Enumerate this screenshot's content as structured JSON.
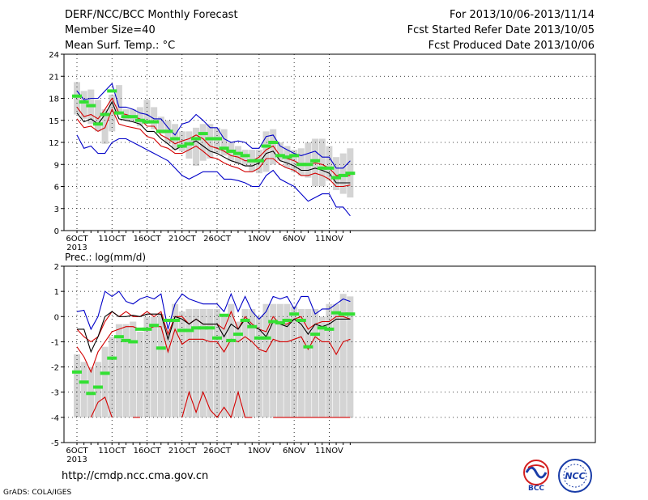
{
  "header": {
    "title": "DERF/NCC/BCC Monthly Forecast",
    "member_size": "Member Size=40",
    "variable": "Mean Surf. Temp.: °C",
    "period": "For 2013/10/06-2013/11/14",
    "start_date": "Fcst Started Refer Date 2013/10/05",
    "produced_date": "Fcst Produced Date 2013/10/06"
  },
  "colors": {
    "bar": "#d4d4d4",
    "mean": "#33e033",
    "median": "#000000",
    "inner": "#d40000",
    "outer": "#0000c8",
    "grid": "#000000"
  },
  "chart_data": [
    {
      "type": "line",
      "title": "Mean Surf. Temp.: °C",
      "xlabel": "",
      "ylabel": "",
      "ylim": [
        0,
        24
      ],
      "yticks": [
        "0",
        "3",
        "6",
        "9",
        "12",
        "15",
        "18",
        "21",
        "24"
      ],
      "xticks": [
        {
          "label": "6OCT",
          "i": 0
        },
        {
          "label": "11OCT",
          "i": 5
        },
        {
          "label": "16OCT",
          "i": 10
        },
        {
          "label": "21OCT",
          "i": 15
        },
        {
          "label": "26OCT",
          "i": 20
        },
        {
          "label": "1NOV",
          "i": 26
        },
        {
          "label": "6NOV",
          "i": 31
        },
        {
          "label": "11NOV",
          "i": 36
        }
      ],
      "year_label": "2013",
      "grid": "dotted",
      "days": 40,
      "series": [
        {
          "role": "bar_low",
          "values": [
            15.8,
            15.2,
            14.5,
            13.5,
            11.8,
            13.5,
            16.0,
            15.0,
            14.8,
            14.2,
            14.5,
            13.8,
            13.2,
            11.8,
            11.0,
            10.8,
            9.8,
            8.8,
            9.5,
            9.8,
            10.5,
            10.2,
            9.5,
            9.0,
            8.8,
            8.0,
            7.8,
            8.0,
            9.0,
            9.5,
            8.5,
            8.0,
            7.5,
            7.2,
            6.0,
            6.0,
            6.8,
            5.5,
            5.0,
            4.5
          ]
        },
        {
          "role": "bar_high",
          "values": [
            20.2,
            19.0,
            19.2,
            17.8,
            16.5,
            18.5,
            19.8,
            16.5,
            16.5,
            16.8,
            17.8,
            16.8,
            15.5,
            15.0,
            14.5,
            13.5,
            13.5,
            14.0,
            14.5,
            14.5,
            14.0,
            13.8,
            12.0,
            11.5,
            11.0,
            11.0,
            11.0,
            13.5,
            13.8,
            12.0,
            11.5,
            11.0,
            11.2,
            12.0,
            12.5,
            12.5,
            11.5,
            10.0,
            10.5,
            11.2
          ]
        },
        {
          "role": "mean",
          "values": [
            18.3,
            17.5,
            17.0,
            14.5,
            15.8,
            19.0,
            16.0,
            15.5,
            15.5,
            15.0,
            14.8,
            14.8,
            13.5,
            13.5,
            12.5,
            11.5,
            11.8,
            12.5,
            13.2,
            12.5,
            12.5,
            11.2,
            10.8,
            10.5,
            10.2,
            9.5,
            9.5,
            11.5,
            12.0,
            10.2,
            10.0,
            10.2,
            9.0,
            9.0,
            9.5,
            8.5,
            8.5,
            7.2,
            7.5,
            7.8
          ]
        },
        {
          "name": "max",
          "role": "outer_high",
          "values": [
            19.0,
            17.8,
            18.0,
            18.0,
            19.0,
            20.0,
            16.8,
            16.8,
            16.5,
            16.0,
            15.8,
            15.2,
            15.2,
            14.0,
            13.0,
            14.5,
            14.8,
            15.8,
            15.0,
            14.0,
            14.0,
            12.5,
            12.0,
            12.2,
            12.0,
            11.2,
            11.2,
            12.8,
            13.0,
            11.5,
            11.0,
            10.5,
            10.2,
            10.5,
            10.8,
            10.0,
            10.0,
            8.5,
            8.5,
            9.5
          ]
        },
        {
          "name": "upper",
          "role": "inner_high",
          "values": [
            16.8,
            15.5,
            15.8,
            15.2,
            16.5,
            18.0,
            16.0,
            15.8,
            15.5,
            15.2,
            14.2,
            14.2,
            13.0,
            12.5,
            11.8,
            12.2,
            12.5,
            13.0,
            12.5,
            11.5,
            11.2,
            10.8,
            10.2,
            10.0,
            9.5,
            9.5,
            10.0,
            11.0,
            11.5,
            10.2,
            9.8,
            9.5,
            9.0,
            9.0,
            9.2,
            9.0,
            8.5,
            7.5,
            7.5,
            7.5
          ]
        },
        {
          "name": "median",
          "role": "median",
          "values": [
            16.0,
            14.8,
            15.2,
            14.5,
            15.8,
            17.5,
            15.2,
            15.0,
            14.8,
            14.5,
            13.5,
            13.5,
            12.5,
            11.8,
            11.0,
            11.5,
            11.8,
            12.2,
            11.5,
            10.8,
            10.5,
            10.0,
            9.5,
            9.2,
            8.8,
            8.8,
            9.2,
            10.5,
            10.8,
            9.5,
            9.2,
            8.8,
            8.2,
            8.2,
            8.5,
            8.2,
            7.8,
            6.5,
            6.5,
            6.5
          ]
        },
        {
          "name": "lower",
          "role": "inner_low",
          "values": [
            15.2,
            14.0,
            14.2,
            13.5,
            14.0,
            16.5,
            14.5,
            14.2,
            14.0,
            13.8,
            12.8,
            12.5,
            11.5,
            11.2,
            10.5,
            10.5,
            11.0,
            11.5,
            10.8,
            10.0,
            9.8,
            9.2,
            8.8,
            8.5,
            8.0,
            8.0,
            8.5,
            9.8,
            9.8,
            9.0,
            8.5,
            8.2,
            7.5,
            7.5,
            7.8,
            7.5,
            7.0,
            6.0,
            6.0,
            6.2
          ]
        },
        {
          "name": "min",
          "role": "outer_low",
          "values": [
            13.0,
            11.2,
            11.5,
            10.5,
            10.5,
            12.0,
            12.5,
            12.5,
            12.0,
            11.5,
            11.0,
            10.5,
            10.0,
            9.5,
            8.5,
            7.5,
            7.0,
            7.5,
            8.0,
            8.0,
            8.0,
            7.0,
            7.0,
            6.8,
            6.5,
            6.0,
            6.0,
            7.5,
            8.2,
            7.0,
            6.5,
            6.0,
            5.0,
            4.0,
            4.5,
            5.0,
            5.0,
            3.2,
            3.2,
            2.0
          ]
        }
      ]
    },
    {
      "type": "line",
      "title": "Prec.: log(mm/d)",
      "xlabel": "",
      "ylabel": "",
      "ylim": [
        -5,
        2
      ],
      "yticks": [
        "-5",
        "-4",
        "-3",
        "-2",
        "-1",
        "0",
        "1",
        "2"
      ],
      "xticks": [
        {
          "label": "6OCT",
          "i": 0
        },
        {
          "label": "11OCT",
          "i": 5
        },
        {
          "label": "16OCT",
          "i": 10
        },
        {
          "label": "21OCT",
          "i": 15
        },
        {
          "label": "26OCT",
          "i": 20
        },
        {
          "label": "1NOV",
          "i": 26
        },
        {
          "label": "6NOV",
          "i": 31
        },
        {
          "label": "11NOV",
          "i": 36
        }
      ],
      "year_label": "2013",
      "grid": "dotted",
      "days": 40,
      "series": [
        {
          "role": "bar_low",
          "values": [
            -4,
            -4,
            -4,
            -4,
            -4,
            -4,
            -4,
            -4,
            -4,
            -4,
            -4,
            -4,
            -4,
            -4,
            -4,
            -4,
            -4,
            -4,
            -4,
            -4,
            -4,
            -4,
            -4,
            -4,
            -4,
            -4,
            -4,
            -4,
            -4,
            -4,
            -4,
            -4,
            -4,
            -4,
            -4,
            -4,
            -4,
            -4,
            -4,
            -4
          ]
        },
        {
          "role": "bar_high",
          "values": [
            -1.5,
            -1.8,
            -2.0,
            -1.8,
            -1.2,
            -0.8,
            -0.3,
            -0.3,
            -0.2,
            -0.6,
            0.0,
            0.0,
            0.1,
            -0.5,
            0.5,
            0.2,
            0.3,
            0.3,
            0.3,
            0.3,
            0.3,
            0.0,
            0.5,
            -0.2,
            0.3,
            0.3,
            0.0,
            0.5,
            0.5,
            0.5,
            0.5,
            0.4,
            0.3,
            0.3,
            0.3,
            0.0,
            0.5,
            0.5,
            0.9,
            0.8
          ]
        },
        {
          "role": "mean",
          "values": [
            -2.2,
            -2.6,
            -3.05,
            -2.8,
            -2.25,
            -1.65,
            -0.8,
            -0.95,
            -1.0,
            -0.5,
            -0.5,
            -0.35,
            -1.25,
            -0.15,
            -0.15,
            -0.55,
            -0.55,
            -0.45,
            -0.45,
            -0.45,
            -0.85,
            0.05,
            -0.95,
            -0.7,
            -0.15,
            -0.4,
            -0.85,
            -0.85,
            -0.2,
            -0.25,
            -0.15,
            0.1,
            -0.15,
            -1.2,
            -0.7,
            -0.45,
            -0.5,
            0.15,
            0.1,
            0.1
          ]
        },
        {
          "name": "max",
          "role": "outer_high",
          "values": [
            0.2,
            0.25,
            -0.5,
            0.0,
            1.0,
            0.8,
            1.0,
            0.6,
            0.5,
            0.7,
            0.8,
            0.7,
            0.9,
            -0.5,
            0.5,
            0.9,
            0.7,
            0.6,
            0.5,
            0.5,
            0.5,
            0.2,
            0.9,
            0.2,
            0.8,
            0.2,
            -0.1,
            0.2,
            0.8,
            0.7,
            0.8,
            0.3,
            0.8,
            0.8,
            0.1,
            0.3,
            0.3,
            0.5,
            0.7,
            0.6
          ]
        },
        {
          "name": "upper",
          "role": "inner_high",
          "values": [
            -0.5,
            -0.8,
            -1.0,
            -0.8,
            -0.2,
            0.2,
            0.0,
            0.2,
            0.0,
            0.0,
            0.2,
            0.0,
            0.2,
            -0.7,
            0.0,
            0.0,
            -0.3,
            -0.1,
            -0.3,
            -0.3,
            -0.3,
            -0.5,
            0.2,
            -0.5,
            0.0,
            -0.3,
            -0.5,
            -0.6,
            0.0,
            -0.3,
            -0.3,
            -0.1,
            0.0,
            -0.5,
            -0.3,
            -0.2,
            -0.2,
            0.0,
            0.0,
            -0.1
          ]
        },
        {
          "name": "median",
          "role": "median",
          "values": [
            -0.5,
            -0.5,
            -1.4,
            -0.8,
            0.0,
            0.2,
            0.0,
            0.0,
            0.05,
            0.0,
            0.1,
            0.1,
            0.1,
            -0.9,
            0.0,
            -0.1,
            -0.3,
            -0.1,
            -0.3,
            -0.3,
            -0.3,
            -0.8,
            -0.3,
            -0.5,
            -0.1,
            -0.4,
            -0.5,
            -0.8,
            -0.2,
            -0.3,
            -0.4,
            -0.1,
            -0.3,
            -0.7,
            -0.3,
            -0.4,
            -0.3,
            -0.1,
            -0.1,
            -0.1
          ]
        },
        {
          "name": "lower",
          "role": "inner_low",
          "values": [
            -1.2,
            -1.6,
            -2.2,
            -1.4,
            -1.0,
            -0.6,
            -0.5,
            -0.4,
            -0.4,
            -0.5,
            -0.5,
            -0.4,
            -0.4,
            -1.4,
            -0.5,
            -1.1,
            -0.9,
            -0.9,
            -0.9,
            -1.0,
            -1.0,
            -1.4,
            -0.9,
            -1.0,
            -0.8,
            -1.0,
            -1.3,
            -1.4,
            -0.9,
            -1.0,
            -1.0,
            -0.9,
            -0.8,
            -1.3,
            -0.8,
            -1.0,
            -1.0,
            -1.5,
            -1.0,
            -0.9
          ]
        }
      ],
      "extra_red": [
        {
          "from": 2,
          "values": [
            -4,
            -3.4,
            -3.2,
            -4
          ]
        },
        {
          "from": 8,
          "values": [
            -4,
            -4
          ]
        },
        {
          "from": 15,
          "values": [
            -4,
            -3,
            -3.8,
            -3,
            -3.7,
            -4,
            -3.6,
            -4,
            -3,
            -4,
            -4
          ]
        },
        {
          "from": 28,
          "values": [
            -4,
            -4,
            -4,
            -4,
            -4,
            -4,
            -4,
            -4,
            -4,
            -4,
            -4,
            -4
          ]
        }
      ]
    }
  ],
  "footer": {
    "url": "http://cmdp.ncc.cma.gov.cn",
    "grads": "GrADS: COLA/IGES",
    "logo_bcc": "BCC",
    "logo_ncc": "NCC"
  }
}
